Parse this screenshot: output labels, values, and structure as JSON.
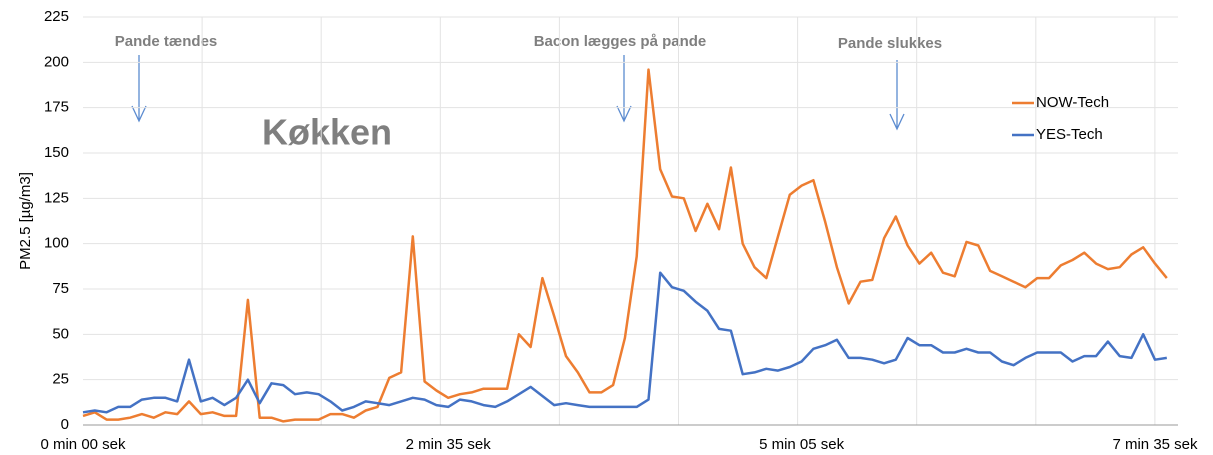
{
  "chart_data": {
    "type": "line",
    "annotations": [
      "Pande tændes",
      "Bacon lægges på pande",
      "Pande slukkes"
    ],
    "subtitle": "Køkken",
    "y_label": "PM2.5 [µg/m3]",
    "categories": [
      "0 min 00 sek",
      null,
      null,
      null,
      null,
      null,
      null,
      null,
      null,
      null,
      null,
      null,
      null,
      null,
      null,
      null,
      null,
      null,
      null,
      null,
      null,
      null,
      null,
      null,
      null,
      null,
      null,
      null,
      null,
      null,
      null,
      "2 min 35 sek",
      null,
      null,
      null,
      null,
      null,
      null,
      null,
      null,
      null,
      null,
      null,
      null,
      null,
      null,
      null,
      null,
      null,
      null,
      null,
      null,
      null,
      null,
      null,
      null,
      null,
      null,
      null,
      null,
      null,
      "5 min 05 sek",
      null,
      null,
      null,
      null,
      null,
      null,
      null,
      null,
      null,
      null,
      null,
      null,
      null,
      null,
      null,
      null,
      null,
      null,
      null,
      null,
      null,
      null,
      null,
      null,
      null,
      null,
      null,
      null,
      null,
      "7 min 35 sek",
      null
    ],
    "series": [
      {
        "name": "NOW-Tech",
        "color": "#ed7d31",
        "values": [
          5,
          7,
          3,
          3,
          4,
          6,
          4,
          7,
          6,
          13,
          6,
          7,
          5,
          5,
          69,
          4,
          4,
          2,
          3,
          3,
          3,
          6,
          6,
          4,
          8,
          10,
          26,
          29,
          104,
          24,
          19,
          15,
          17,
          18,
          20,
          20,
          20,
          50,
          43,
          81,
          60,
          38,
          29,
          18,
          18,
          22,
          48,
          93,
          196,
          141,
          126,
          125,
          107,
          122,
          108,
          142,
          100,
          87,
          81,
          104,
          127,
          132,
          135,
          112,
          87,
          67,
          79,
          80,
          103,
          115,
          99,
          89,
          95,
          84,
          82,
          101,
          99,
          85,
          82,
          79,
          76,
          81,
          81,
          88,
          91,
          95,
          89,
          86,
          87,
          94,
          98,
          89,
          81
        ]
      },
      {
        "name": "YES-Tech",
        "color": "#4472c4",
        "values": [
          7,
          8,
          7,
          10,
          10,
          14,
          15,
          15,
          13,
          36,
          13,
          15,
          11,
          15,
          25,
          12,
          23,
          22,
          17,
          18,
          17,
          13,
          8,
          10,
          13,
          12,
          11,
          13,
          15,
          14,
          11,
          10,
          14,
          13,
          11,
          10,
          13,
          17,
          21,
          16,
          11,
          12,
          11,
          10,
          10,
          10,
          10,
          10,
          14,
          84,
          76,
          74,
          68,
          63,
          53,
          52,
          28,
          29,
          31,
          30,
          32,
          35,
          42,
          44,
          47,
          37,
          37,
          36,
          34,
          36,
          48,
          44,
          44,
          40,
          40,
          42,
          40,
          40,
          35,
          33,
          37,
          40,
          40,
          40,
          35,
          38,
          38,
          46,
          38,
          37,
          50,
          36,
          37
        ]
      }
    ],
    "ylim": [
      0,
      225
    ],
    "yticks": [
      0,
      25,
      50,
      75,
      100,
      125,
      150,
      175,
      200,
      225
    ],
    "grid": true,
    "legend": "upper right"
  }
}
